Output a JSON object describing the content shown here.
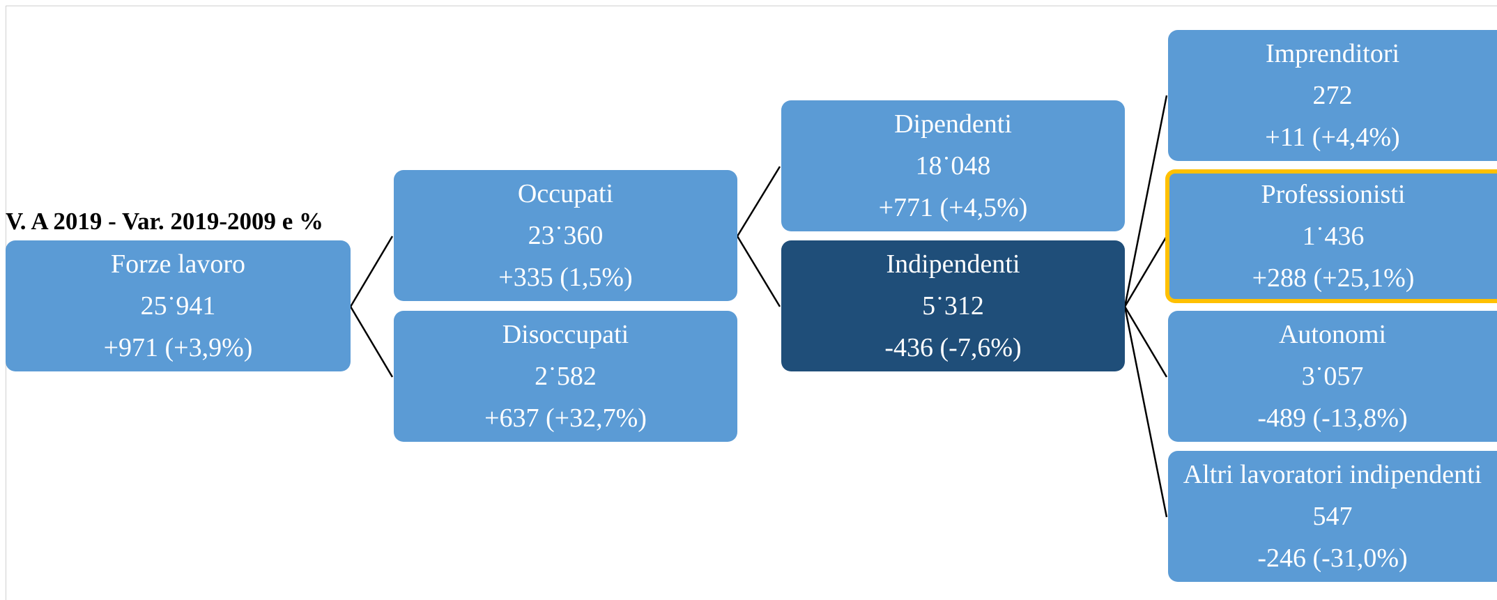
{
  "title": "V. A 2019 - Var. 2019-2009 e %",
  "nodes": {
    "forze_lavoro": {
      "label": "Forze lavoro",
      "value": "25˙941",
      "change": "+971 (+3,9%)"
    },
    "occupati": {
      "label": "Occupati",
      "value": "23˙360",
      "change": "+335 (1,5%)"
    },
    "disoccupati": {
      "label": "Disoccupati",
      "value": "2˙582",
      "change": "+637 (+32,7%)"
    },
    "dipendenti": {
      "label": "Dipendenti",
      "value": "18˙048",
      "change": "+771 (+4,5%)"
    },
    "indipendenti": {
      "label": "Indipendenti",
      "value": "5˙312",
      "change": "-436 (-7,6%)"
    },
    "imprenditori": {
      "label": "Imprenditori",
      "value": "272",
      "change": "+11 (+4,4%)"
    },
    "professionisti": {
      "label": "Professionisti",
      "value": "1˙436",
      "change": "+288 (+25,1%)"
    },
    "autonomi": {
      "label": "Autonomi",
      "value": "3˙057",
      "change": "-489 (-13,8%)"
    },
    "altri": {
      "label": "Altri lavoratori indipendenti",
      "value": "547",
      "change": "-246 (-31,0%)"
    }
  },
  "colors": {
    "node": "#5b9bd5",
    "node_selected": "#1f4e79",
    "highlight_border": "#ffc000",
    "connector": "#000000",
    "text": "#ffffff"
  }
}
